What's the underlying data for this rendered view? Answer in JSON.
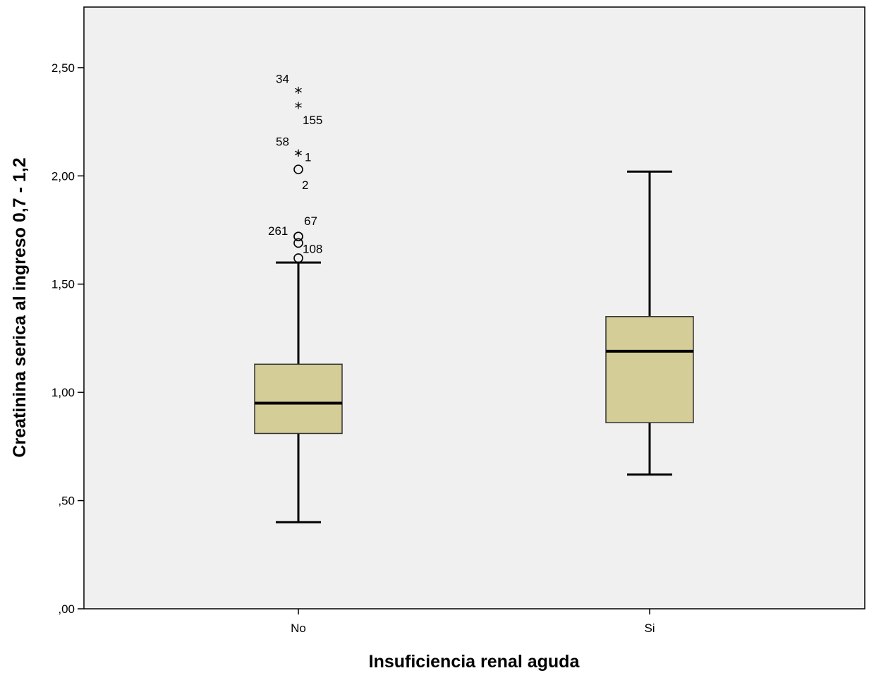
{
  "chart_data": {
    "type": "boxplot",
    "xlabel": "Insuficiencia renal aguda",
    "ylabel": "Creatinina serica al ingreso 0,7 - 1,2",
    "ylim": [
      0,
      2.78
    ],
    "yticks": [
      0,
      0.5,
      1.0,
      1.5,
      2.0,
      2.5
    ],
    "ytick_labels": [
      ",00",
      ",50",
      "1,00",
      "1,50",
      "2,00",
      "2,50"
    ],
    "grid": false,
    "colors": {
      "box_fill": "#d4cd98",
      "plot_bg": "#f0f0f0",
      "line": "#000000"
    },
    "categories": [
      "No",
      "Si"
    ],
    "boxes": [
      {
        "category": "No",
        "whisker_low": 0.4,
        "q1": 0.81,
        "median": 0.95,
        "q3": 1.13,
        "whisker_high": 1.6,
        "outliers": [
          {
            "value": 2.39,
            "label": "34",
            "marker": "star"
          },
          {
            "value": 2.32,
            "label": "155",
            "marker": "star"
          },
          {
            "value": 2.1,
            "label": "58",
            "marker": "star"
          },
          {
            "value": 2.1,
            "label": "1",
            "marker": "star"
          },
          {
            "value": 2.03,
            "label": "2",
            "marker": "circle"
          },
          {
            "value": 1.72,
            "label": "261",
            "marker": "circle"
          },
          {
            "value": 1.72,
            "label": "67",
            "marker": "circle"
          },
          {
            "value": 1.69,
            "label": "108",
            "marker": "circle"
          },
          {
            "value": 1.62,
            "label": "",
            "marker": "circle"
          }
        ]
      },
      {
        "category": "Si",
        "whisker_low": 0.62,
        "q1": 0.86,
        "median": 1.19,
        "q3": 1.35,
        "whisker_high": 2.02,
        "outliers": []
      }
    ]
  }
}
